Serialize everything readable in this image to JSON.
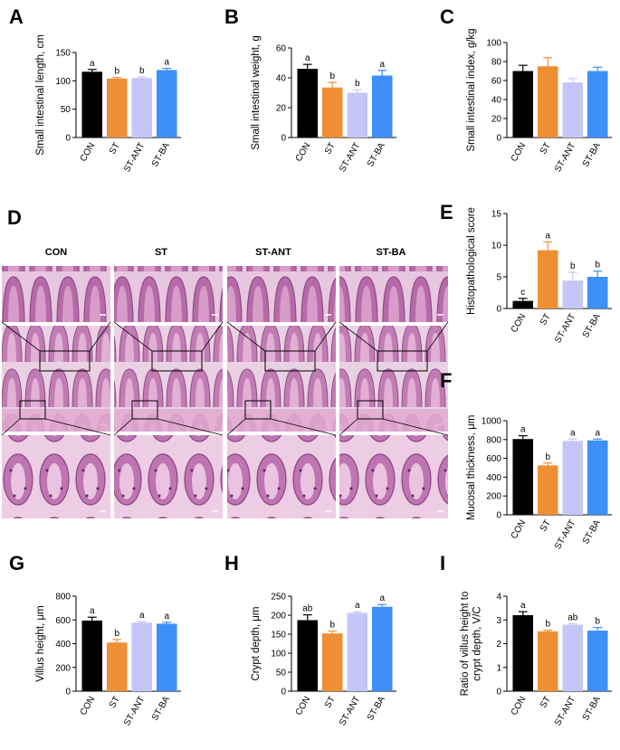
{
  "colors": {
    "CON": "#000000",
    "ST": "#ef8f34",
    "ST-ANT": "#c5c6f7",
    "ST-BA": "#3d8ef7"
  },
  "histology": {
    "panel_label": "D",
    "columns": [
      "CON",
      "ST",
      "ST-ANT",
      "ST-BA"
    ],
    "tissue_color": "#c47cb7",
    "description_rows": 3
  },
  "chart_data": [
    {
      "panel": "A",
      "type": "bar",
      "categories": [
        "CON",
        "ST",
        "ST-ANT",
        "ST-BA"
      ],
      "values": [
        116,
        104,
        105,
        119
      ],
      "errors": [
        4,
        2,
        2,
        3
      ],
      "letters": [
        "a",
        "b",
        "b",
        "a"
      ],
      "ylabel": "Small intestinal length, cm",
      "ylim": [
        0,
        150
      ],
      "yticks": [
        0,
        50,
        100,
        150
      ]
    },
    {
      "panel": "B",
      "type": "bar",
      "categories": [
        "CON",
        "ST",
        "ST-ANT",
        "ST-BA"
      ],
      "values": [
        46,
        33.5,
        30,
        41.5
      ],
      "errors": [
        3,
        3.5,
        2,
        3.5
      ],
      "letters": [
        "a",
        "b",
        "b",
        "a"
      ],
      "ylabel": "Small intestinal weight, g",
      "ylim": [
        0,
        60
      ],
      "yticks": [
        0,
        20,
        40,
        60
      ]
    },
    {
      "panel": "C",
      "type": "bar",
      "categories": [
        "CON",
        "ST",
        "ST-ANT",
        "ST-BA"
      ],
      "values": [
        70,
        75,
        58,
        70
      ],
      "errors": [
        6,
        9,
        4,
        4
      ],
      "letters": [
        "",
        "",
        "",
        ""
      ],
      "ylabel": "Small intestinal index, g/kg",
      "ylim": [
        0,
        100
      ],
      "yticks": [
        0,
        20,
        40,
        60,
        80,
        100
      ]
    },
    {
      "panel": "E",
      "type": "bar",
      "categories": [
        "CON",
        "ST",
        "ST-ANT",
        "ST-BA"
      ],
      "values": [
        1.2,
        9.2,
        4.4,
        5.0
      ],
      "errors": [
        0.4,
        1.3,
        1.3,
        0.9
      ],
      "letters": [
        "c",
        "a",
        "b",
        "b"
      ],
      "ylabel": "Histopathological score",
      "ylim": [
        0,
        15
      ],
      "yticks": [
        0,
        5,
        10,
        15
      ]
    },
    {
      "panel": "F",
      "type": "bar",
      "categories": [
        "CON",
        "ST",
        "ST-ANT",
        "ST-BA"
      ],
      "values": [
        805,
        525,
        785,
        790
      ],
      "errors": [
        35,
        25,
        20,
        15
      ],
      "letters": [
        "a",
        "b",
        "a",
        "a"
      ],
      "ylabel": "Mucosal thickness, μm",
      "ylim": [
        0,
        1000
      ],
      "yticks": [
        0,
        200,
        400,
        600,
        800,
        1000
      ]
    },
    {
      "panel": "G",
      "type": "bar",
      "categories": [
        "CON",
        "ST",
        "ST-ANT",
        "ST-BA"
      ],
      "values": [
        595,
        410,
        578,
        568
      ],
      "errors": [
        28,
        25,
        8,
        12
      ],
      "letters": [
        "a",
        "b",
        "a",
        "a"
      ],
      "ylabel": "Villus height, μm",
      "ylim": [
        0,
        800
      ],
      "yticks": [
        0,
        200,
        400,
        600,
        800
      ]
    },
    {
      "panel": "H",
      "type": "bar",
      "categories": [
        "CON",
        "ST",
        "ST-ANT",
        "ST-BA"
      ],
      "values": [
        187,
        152,
        206,
        222
      ],
      "errors": [
        14,
        6,
        3,
        6
      ],
      "letters": [
        "ab",
        "b",
        "a",
        "a"
      ],
      "ylabel": "Crypt depth, μm",
      "ylim": [
        0,
        250
      ],
      "yticks": [
        0,
        50,
        100,
        150,
        200,
        250
      ]
    },
    {
      "panel": "I",
      "type": "bar",
      "categories": [
        "CON",
        "ST",
        "ST-ANT",
        "ST-BA"
      ],
      "values": [
        3.2,
        2.52,
        2.8,
        2.55
      ],
      "errors": [
        0.15,
        0.05,
        0.04,
        0.13
      ],
      "letters": [
        "a",
        "b",
        "ab",
        "b"
      ],
      "ylabel": "Ratio of villus height to crypt depth, V/C",
      "ylim": [
        0,
        4
      ],
      "yticks": [
        0,
        1,
        2,
        3,
        4
      ]
    }
  ]
}
